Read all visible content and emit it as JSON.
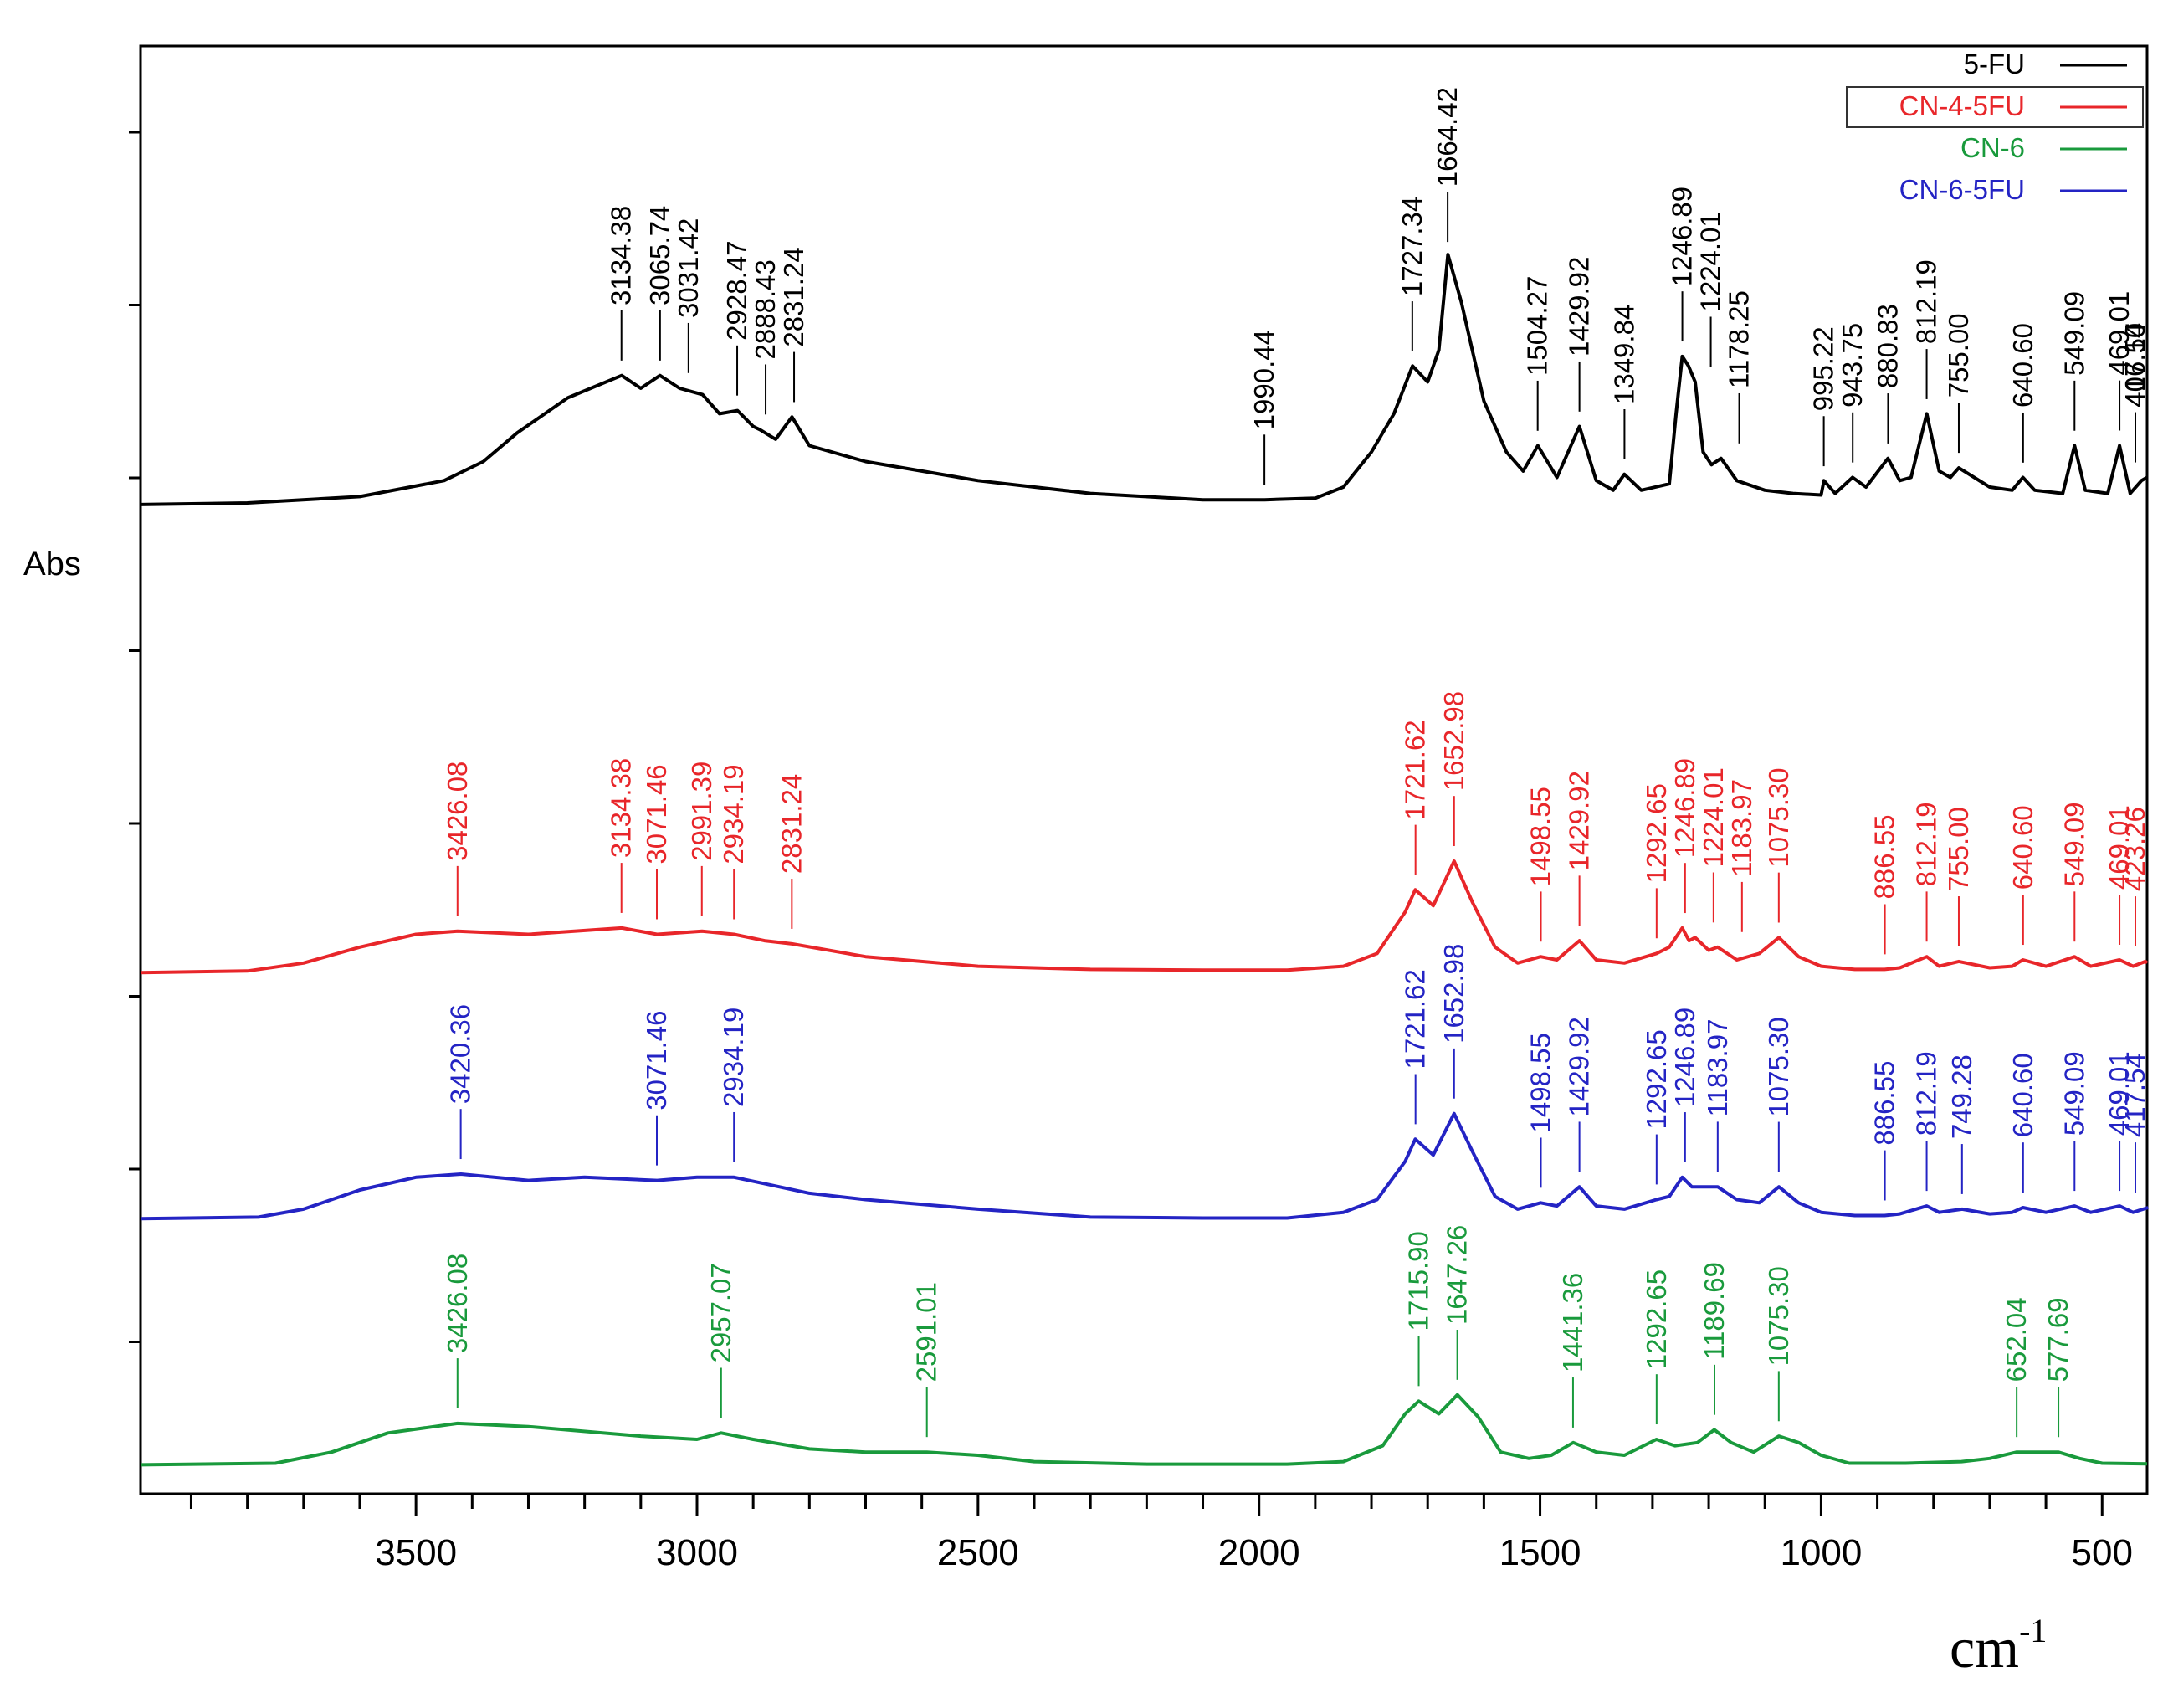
{
  "chart_data": {
    "type": "line",
    "title": "",
    "xlabel": "cm",
    "xlabel_superscript": "-1",
    "ylabel": "Abs",
    "xlim": [
      3990,
      420
    ],
    "x_reversed": true,
    "x_ticks": [
      3500,
      3000,
      2500,
      2000,
      1500,
      1000,
      500
    ],
    "x_tick_labels": [
      "3500",
      "3000",
      "2500",
      "2000",
      "1500",
      "1000",
      "500"
    ],
    "y_ticks_shown": true,
    "y_tick_labels_shown": false,
    "grid": false,
    "legend_position": "top-right",
    "series": [
      {
        "name": "5-FU",
        "color": "#000000",
        "offset": 0.68,
        "points": [
          [
            3990,
            0.015
          ],
          [
            3800,
            0.02
          ],
          [
            3600,
            0.04
          ],
          [
            3450,
            0.09
          ],
          [
            3380,
            0.15
          ],
          [
            3320,
            0.24
          ],
          [
            3230,
            0.35
          ],
          [
            3134,
            0.42
          ],
          [
            3100,
            0.38
          ],
          [
            3066,
            0.42
          ],
          [
            3031,
            0.38
          ],
          [
            2990,
            0.36
          ],
          [
            2960,
            0.3
          ],
          [
            2928,
            0.31
          ],
          [
            2900,
            0.26
          ],
          [
            2888,
            0.25
          ],
          [
            2860,
            0.22
          ],
          [
            2831,
            0.29
          ],
          [
            2800,
            0.2
          ],
          [
            2700,
            0.15
          ],
          [
            2500,
            0.09
          ],
          [
            2300,
            0.05
          ],
          [
            2100,
            0.03
          ],
          [
            1990,
            0.03
          ],
          [
            1900,
            0.035
          ],
          [
            1850,
            0.07
          ],
          [
            1800,
            0.18
          ],
          [
            1760,
            0.3
          ],
          [
            1727,
            0.45
          ],
          [
            1700,
            0.4
          ],
          [
            1680,
            0.5
          ],
          [
            1664,
            0.8
          ],
          [
            1640,
            0.65
          ],
          [
            1600,
            0.34
          ],
          [
            1560,
            0.18
          ],
          [
            1530,
            0.12
          ],
          [
            1504,
            0.2
          ],
          [
            1470,
            0.1
          ],
          [
            1430,
            0.26
          ],
          [
            1400,
            0.09
          ],
          [
            1370,
            0.06
          ],
          [
            1350,
            0.11
          ],
          [
            1320,
            0.06
          ],
          [
            1270,
            0.08
          ],
          [
            1258,
            0.3
          ],
          [
            1247,
            0.48
          ],
          [
            1236,
            0.45
          ],
          [
            1224,
            0.4
          ],
          [
            1210,
            0.18
          ],
          [
            1195,
            0.14
          ],
          [
            1178,
            0.16
          ],
          [
            1150,
            0.09
          ],
          [
            1100,
            0.06
          ],
          [
            1050,
            0.05
          ],
          [
            1000,
            0.045
          ],
          [
            995,
            0.09
          ],
          [
            975,
            0.05
          ],
          [
            944,
            0.1
          ],
          [
            920,
            0.07
          ],
          [
            881,
            0.16
          ],
          [
            860,
            0.09
          ],
          [
            840,
            0.1
          ],
          [
            812,
            0.3
          ],
          [
            790,
            0.12
          ],
          [
            770,
            0.1
          ],
          [
            755,
            0.13
          ],
          [
            700,
            0.07
          ],
          [
            660,
            0.06
          ],
          [
            641,
            0.1
          ],
          [
            620,
            0.06
          ],
          [
            570,
            0.05
          ],
          [
            549,
            0.2
          ],
          [
            530,
            0.06
          ],
          [
            490,
            0.05
          ],
          [
            469,
            0.2
          ],
          [
            450,
            0.05
          ],
          [
            430,
            0.09
          ],
          [
            420,
            0.1
          ]
        ]
      },
      {
        "name": "CN-4-5FU",
        "color": "#e8262a",
        "offset": 0.36,
        "points": [
          [
            3990,
            0.0
          ],
          [
            3800,
            0.005
          ],
          [
            3700,
            0.03
          ],
          [
            3600,
            0.08
          ],
          [
            3500,
            0.12
          ],
          [
            3426,
            0.13
          ],
          [
            3300,
            0.12
          ],
          [
            3134,
            0.14
          ],
          [
            3071,
            0.12
          ],
          [
            2991,
            0.13
          ],
          [
            2934,
            0.12
          ],
          [
            2880,
            0.1
          ],
          [
            2831,
            0.09
          ],
          [
            2700,
            0.05
          ],
          [
            2500,
            0.02
          ],
          [
            2300,
            0.01
          ],
          [
            2100,
            0.008
          ],
          [
            1950,
            0.008
          ],
          [
            1850,
            0.02
          ],
          [
            1790,
            0.06
          ],
          [
            1740,
            0.19
          ],
          [
            1722,
            0.26
          ],
          [
            1690,
            0.21
          ],
          [
            1653,
            0.35
          ],
          [
            1620,
            0.22
          ],
          [
            1580,
            0.08
          ],
          [
            1540,
            0.03
          ],
          [
            1499,
            0.05
          ],
          [
            1470,
            0.04
          ],
          [
            1430,
            0.1
          ],
          [
            1400,
            0.04
          ],
          [
            1350,
            0.03
          ],
          [
            1293,
            0.06
          ],
          [
            1270,
            0.08
          ],
          [
            1247,
            0.14
          ],
          [
            1235,
            0.1
          ],
          [
            1224,
            0.11
          ],
          [
            1200,
            0.07
          ],
          [
            1184,
            0.08
          ],
          [
            1150,
            0.04
          ],
          [
            1110,
            0.06
          ],
          [
            1075,
            0.11
          ],
          [
            1040,
            0.05
          ],
          [
            1000,
            0.02
          ],
          [
            940,
            0.01
          ],
          [
            887,
            0.01
          ],
          [
            860,
            0.015
          ],
          [
            812,
            0.05
          ],
          [
            790,
            0.02
          ],
          [
            755,
            0.035
          ],
          [
            700,
            0.015
          ],
          [
            660,
            0.02
          ],
          [
            641,
            0.04
          ],
          [
            600,
            0.02
          ],
          [
            549,
            0.05
          ],
          [
            520,
            0.02
          ],
          [
            469,
            0.04
          ],
          [
            445,
            0.02
          ],
          [
            423,
            0.035
          ],
          [
            420,
            0.03
          ]
        ]
      },
      {
        "name": "CN-6",
        "color": "#199a3c",
        "offset": 0.02,
        "points": [
          [
            3990,
            0.0
          ],
          [
            3750,
            0.005
          ],
          [
            3650,
            0.04
          ],
          [
            3550,
            0.1
          ],
          [
            3426,
            0.13
          ],
          [
            3300,
            0.12
          ],
          [
            3100,
            0.09
          ],
          [
            3000,
            0.08
          ],
          [
            2957,
            0.1
          ],
          [
            2900,
            0.08
          ],
          [
            2800,
            0.05
          ],
          [
            2700,
            0.04
          ],
          [
            2591,
            0.04
          ],
          [
            2500,
            0.03
          ],
          [
            2400,
            0.01
          ],
          [
            2200,
            0.002
          ],
          [
            1950,
            0.002
          ],
          [
            1850,
            0.01
          ],
          [
            1780,
            0.06
          ],
          [
            1740,
            0.16
          ],
          [
            1716,
            0.2
          ],
          [
            1680,
            0.16
          ],
          [
            1647,
            0.22
          ],
          [
            1610,
            0.15
          ],
          [
            1570,
            0.04
          ],
          [
            1520,
            0.02
          ],
          [
            1480,
            0.03
          ],
          [
            1441,
            0.07
          ],
          [
            1400,
            0.04
          ],
          [
            1350,
            0.03
          ],
          [
            1293,
            0.08
          ],
          [
            1260,
            0.06
          ],
          [
            1220,
            0.07
          ],
          [
            1190,
            0.11
          ],
          [
            1160,
            0.07
          ],
          [
            1120,
            0.04
          ],
          [
            1075,
            0.09
          ],
          [
            1040,
            0.07
          ],
          [
            1000,
            0.03
          ],
          [
            950,
            0.005
          ],
          [
            850,
            0.005
          ],
          [
            750,
            0.01
          ],
          [
            700,
            0.02
          ],
          [
            652,
            0.04
          ],
          [
            600,
            0.04
          ],
          [
            578,
            0.04
          ],
          [
            540,
            0.02
          ],
          [
            500,
            0.005
          ],
          [
            420,
            0.003
          ]
        ]
      },
      {
        "name": "CN-6-5FU",
        "color": "#2424c4",
        "offset": 0.19,
        "points": [
          [
            3990,
            0.0
          ],
          [
            3780,
            0.005
          ],
          [
            3700,
            0.03
          ],
          [
            3600,
            0.09
          ],
          [
            3500,
            0.13
          ],
          [
            3420,
            0.14
          ],
          [
            3300,
            0.12
          ],
          [
            3200,
            0.13
          ],
          [
            3071,
            0.12
          ],
          [
            3000,
            0.13
          ],
          [
            2934,
            0.13
          ],
          [
            2880,
            0.11
          ],
          [
            2800,
            0.08
          ],
          [
            2700,
            0.06
          ],
          [
            2500,
            0.03
          ],
          [
            2300,
            0.005
          ],
          [
            2100,
            0.002
          ],
          [
            1950,
            0.002
          ],
          [
            1850,
            0.02
          ],
          [
            1790,
            0.06
          ],
          [
            1740,
            0.18
          ],
          [
            1722,
            0.25
          ],
          [
            1690,
            0.2
          ],
          [
            1653,
            0.33
          ],
          [
            1620,
            0.21
          ],
          [
            1580,
            0.07
          ],
          [
            1540,
            0.03
          ],
          [
            1499,
            0.05
          ],
          [
            1470,
            0.04
          ],
          [
            1430,
            0.1
          ],
          [
            1400,
            0.04
          ],
          [
            1350,
            0.03
          ],
          [
            1293,
            0.06
          ],
          [
            1270,
            0.07
          ],
          [
            1247,
            0.13
          ],
          [
            1230,
            0.1
          ],
          [
            1184,
            0.1
          ],
          [
            1150,
            0.06
          ],
          [
            1110,
            0.05
          ],
          [
            1075,
            0.1
          ],
          [
            1040,
            0.05
          ],
          [
            1000,
            0.02
          ],
          [
            940,
            0.01
          ],
          [
            887,
            0.01
          ],
          [
            860,
            0.015
          ],
          [
            812,
            0.04
          ],
          [
            790,
            0.02
          ],
          [
            749,
            0.03
          ],
          [
            700,
            0.015
          ],
          [
            660,
            0.02
          ],
          [
            641,
            0.035
          ],
          [
            600,
            0.02
          ],
          [
            549,
            0.04
          ],
          [
            520,
            0.02
          ],
          [
            469,
            0.04
          ],
          [
            445,
            0.02
          ],
          [
            418,
            0.035
          ]
        ]
      }
    ],
    "peak_labels": [
      {
        "series": 0,
        "labels": [
          "3134.38",
          "3065.74",
          "3031.42",
          "2928.47",
          "2888.43",
          "2831.24",
          "1990.44",
          "1727.34",
          "1664.42",
          "1504.27",
          "1429.92",
          "1349.84",
          "1246.89",
          "1224.01",
          "1178.25",
          "995.22",
          "943.75",
          "880.83",
          "812.19",
          "755.00",
          "640.60",
          "549.09",
          "469.01",
          "417.54",
          "406.10"
        ]
      },
      {
        "series": 1,
        "labels": [
          "3426.08",
          "3134.38",
          "3071.46",
          "2991.39",
          "2934.19",
          "2831.24",
          "1721.62",
          "1652.98",
          "1498.55",
          "1429.92",
          "1292.65",
          "1246.89",
          "1224.01",
          "1183.97",
          "1075.30",
          "886.55",
          "812.19",
          "755.00",
          "640.60",
          "549.09",
          "469.01",
          "423.26"
        ]
      },
      {
        "series": 3,
        "labels": [
          "3420.36",
          "3071.46",
          "2934.19",
          "1721.62",
          "1652.98",
          "1498.55",
          "1429.92",
          "1292.65",
          "1246.89",
          "1183.97",
          "1075.30",
          "886.55",
          "812.19",
          "749.28",
          "640.60",
          "549.09",
          "469.01",
          "417.54"
        ]
      },
      {
        "series": 2,
        "labels": [
          "3426.08",
          "2957.07",
          "2591.01",
          "1715.90",
          "1647.26",
          "1441.36",
          "1292.65",
          "1189.69",
          "1075.30",
          "652.04",
          "577.69"
        ]
      }
    ]
  }
}
